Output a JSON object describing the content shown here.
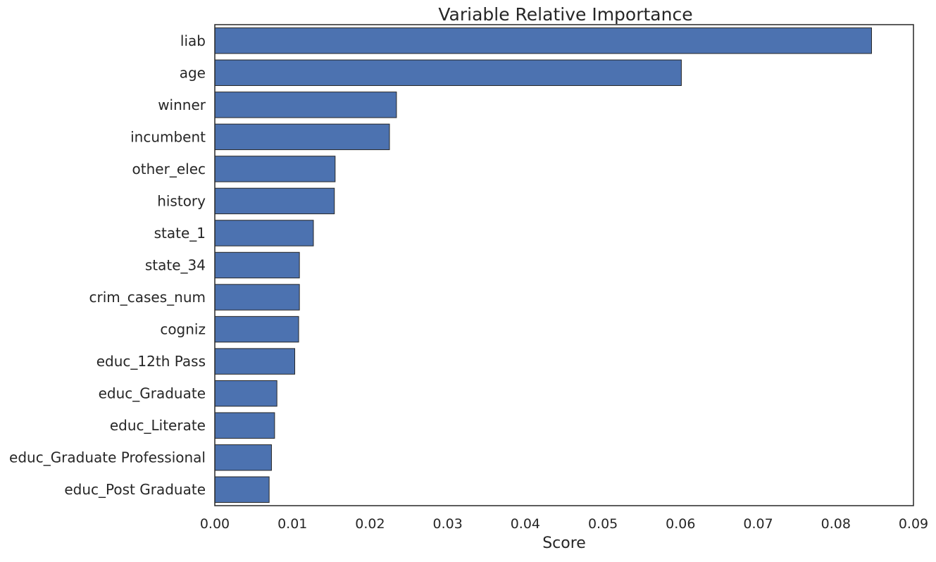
{
  "chart_data": {
    "type": "bar",
    "orientation": "horizontal",
    "title": "Variable Relative Importance",
    "xlabel": "Score",
    "ylabel": "",
    "xlim": [
      0,
      0.09
    ],
    "x_ticks": [
      "0.00",
      "0.01",
      "0.02",
      "0.03",
      "0.04",
      "0.05",
      "0.06",
      "0.07",
      "0.08",
      "0.09"
    ],
    "categories": [
      "liab",
      "age",
      "winner",
      "incumbent",
      "other_elec",
      "history",
      "state_1",
      "state_34",
      "crim_cases_num",
      "cogniz",
      "educ_12th Pass",
      "educ_Graduate",
      "educ_Literate",
      "educ_Graduate Professional",
      "educ_Post Graduate"
    ],
    "values": [
      0.0846,
      0.0601,
      0.0234,
      0.0225,
      0.0155,
      0.0154,
      0.0127,
      0.0109,
      0.0109,
      0.0108,
      0.0103,
      0.008,
      0.0077,
      0.0073,
      0.007
    ],
    "bar_color": "#4c72b0",
    "grid": false,
    "legend": false
  }
}
